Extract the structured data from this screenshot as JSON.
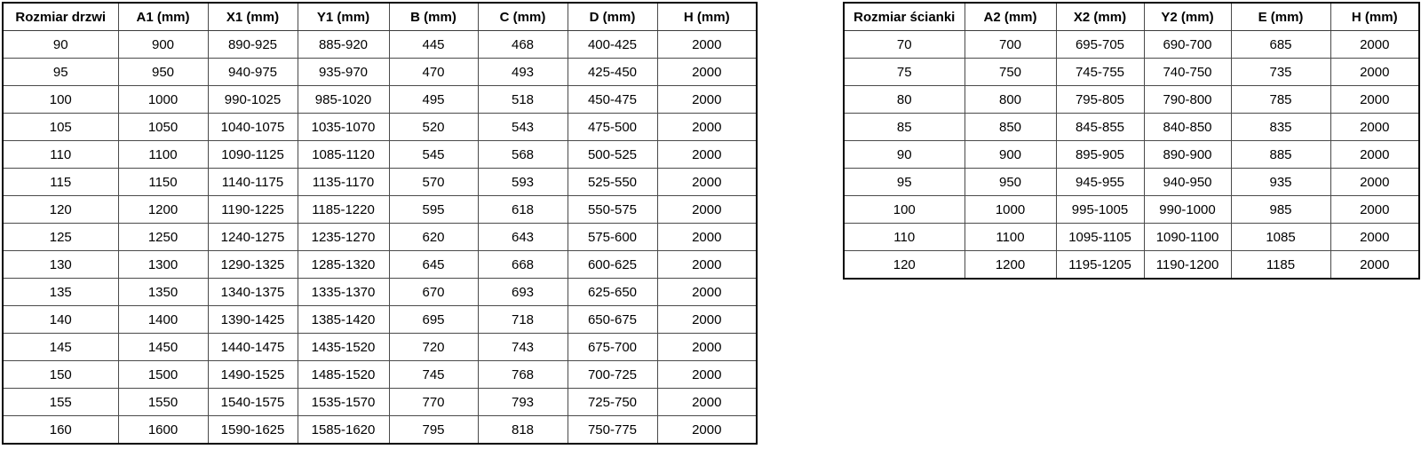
{
  "page": {
    "background": "#ffffff",
    "text_color": "#000000",
    "border_outer_color": "#000000",
    "border_inner_color": "#4a4a4a"
  },
  "tables": {
    "doors": {
      "title": "door-sizes",
      "headers": [
        "Rozmiar drzwi",
        "A1 (mm)",
        "X1 (mm)",
        "Y1 (mm)",
        "B (mm)",
        "C (mm)",
        "D (mm)",
        "H (mm)"
      ],
      "rows": [
        [
          "90",
          "900",
          "890-925",
          "885-920",
          "445",
          "468",
          "400-425",
          "2000"
        ],
        [
          "95",
          "950",
          "940-975",
          "935-970",
          "470",
          "493",
          "425-450",
          "2000"
        ],
        [
          "100",
          "1000",
          "990-1025",
          "985-1020",
          "495",
          "518",
          "450-475",
          "2000"
        ],
        [
          "105",
          "1050",
          "1040-1075",
          "1035-1070",
          "520",
          "543",
          "475-500",
          "2000"
        ],
        [
          "110",
          "1100",
          "1090-1125",
          "1085-1120",
          "545",
          "568",
          "500-525",
          "2000"
        ],
        [
          "115",
          "1150",
          "1140-1175",
          "1135-1170",
          "570",
          "593",
          "525-550",
          "2000"
        ],
        [
          "120",
          "1200",
          "1190-1225",
          "1185-1220",
          "595",
          "618",
          "550-575",
          "2000"
        ],
        [
          "125",
          "1250",
          "1240-1275",
          "1235-1270",
          "620",
          "643",
          "575-600",
          "2000"
        ],
        [
          "130",
          "1300",
          "1290-1325",
          "1285-1320",
          "645",
          "668",
          "600-625",
          "2000"
        ],
        [
          "135",
          "1350",
          "1340-1375",
          "1335-1370",
          "670",
          "693",
          "625-650",
          "2000"
        ],
        [
          "140",
          "1400",
          "1390-1425",
          "1385-1420",
          "695",
          "718",
          "650-675",
          "2000"
        ],
        [
          "145",
          "1450",
          "1440-1475",
          "1435-1520",
          "720",
          "743",
          "675-700",
          "2000"
        ],
        [
          "150",
          "1500",
          "1490-1525",
          "1485-1520",
          "745",
          "768",
          "700-725",
          "2000"
        ],
        [
          "155",
          "1550",
          "1540-1575",
          "1535-1570",
          "770",
          "793",
          "725-750",
          "2000"
        ],
        [
          "160",
          "1600",
          "1590-1625",
          "1585-1620",
          "795",
          "818",
          "750-775",
          "2000"
        ]
      ]
    },
    "walls": {
      "title": "wall-panel-sizes",
      "headers": [
        "Rozmiar ścianki",
        "A2 (mm)",
        "X2 (mm)",
        "Y2 (mm)",
        "E (mm)",
        "H (mm)"
      ],
      "rows": [
        [
          "70",
          "700",
          "695-705",
          "690-700",
          "685",
          "2000"
        ],
        [
          "75",
          "750",
          "745-755",
          "740-750",
          "735",
          "2000"
        ],
        [
          "80",
          "800",
          "795-805",
          "790-800",
          "785",
          "2000"
        ],
        [
          "85",
          "850",
          "845-855",
          "840-850",
          "835",
          "2000"
        ],
        [
          "90",
          "900",
          "895-905",
          "890-900",
          "885",
          "2000"
        ],
        [
          "95",
          "950",
          "945-955",
          "940-950",
          "935",
          "2000"
        ],
        [
          "100",
          "1000",
          "995-1005",
          "990-1000",
          "985",
          "2000"
        ],
        [
          "110",
          "1100",
          "1095-1105",
          "1090-1100",
          "1085",
          "2000"
        ],
        [
          "120",
          "1200",
          "1195-1205",
          "1190-1200",
          "1185",
          "2000"
        ]
      ]
    }
  }
}
